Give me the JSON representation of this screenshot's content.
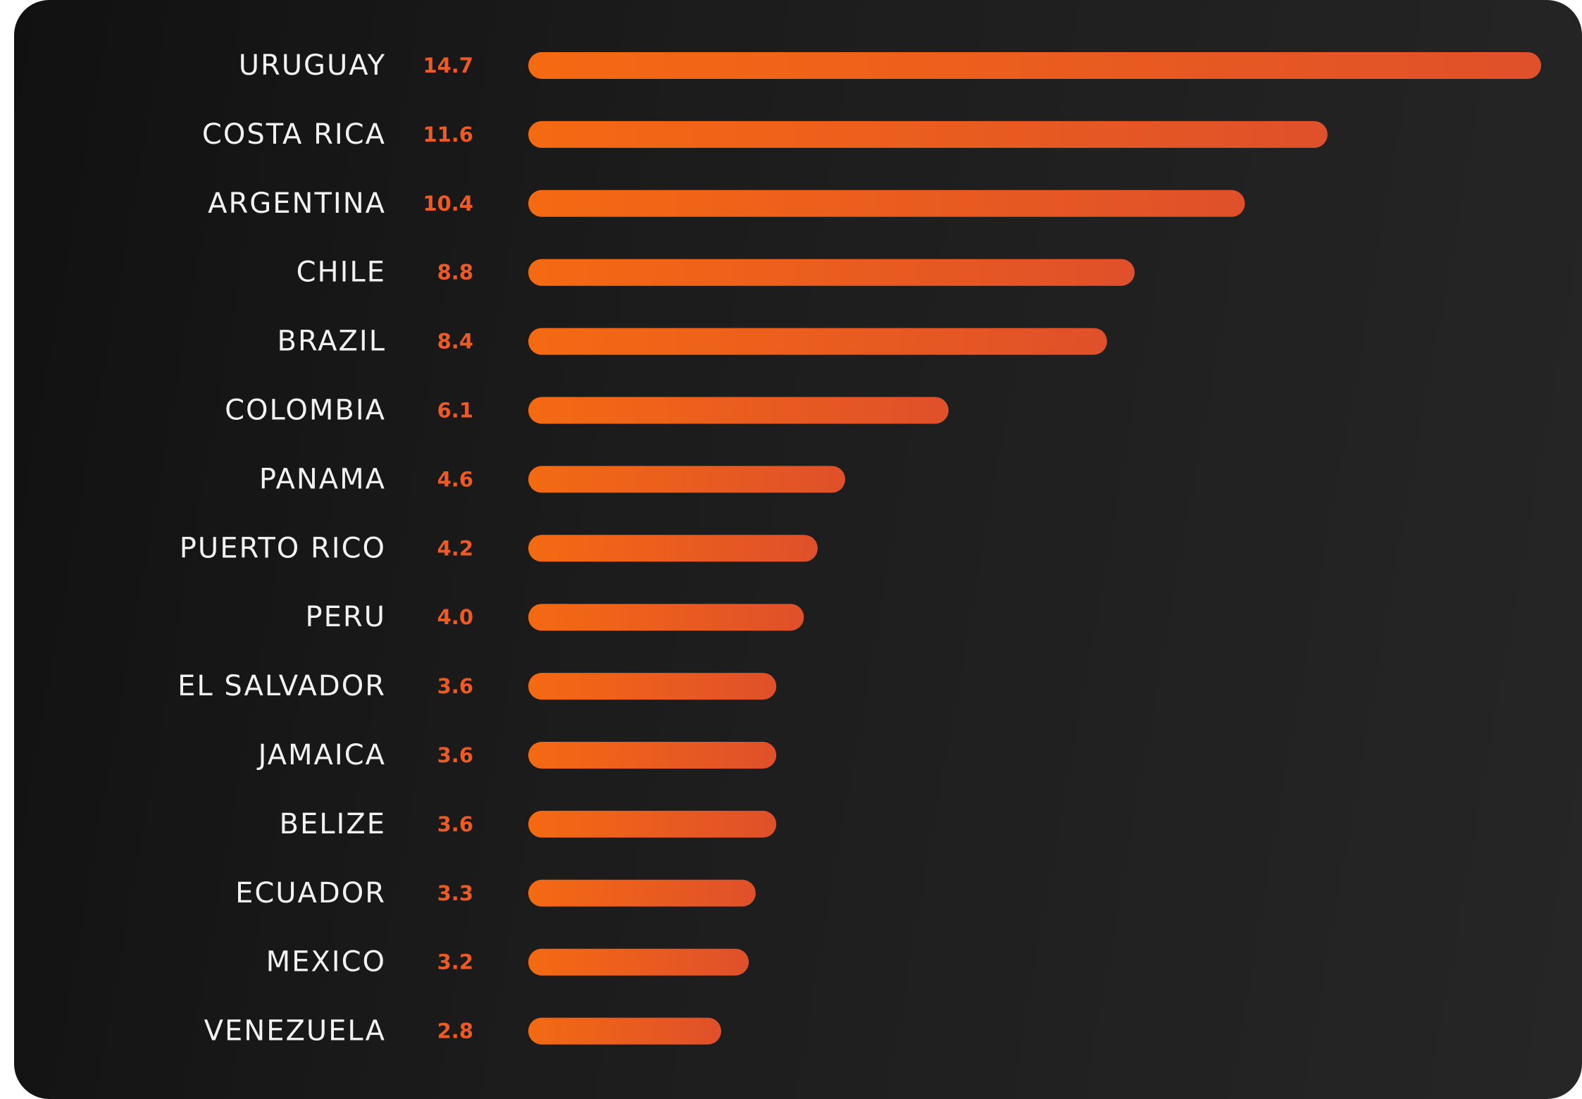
{
  "chart_data": {
    "type": "bar",
    "orientation": "horizontal",
    "categories": [
      "URUGUAY",
      "COSTA RICA",
      "ARGENTINA",
      "CHILE",
      "BRAZIL",
      "COLOMBIA",
      "PANAMA",
      "PUERTO RICO",
      "PERU",
      "EL SALVADOR",
      "JAMAICA",
      "BELIZE",
      "ECUADOR",
      "MEXICO",
      "VENEZUELA"
    ],
    "values": [
      14.7,
      11.6,
      10.4,
      8.8,
      8.4,
      6.1,
      4.6,
      4.2,
      4.0,
      3.6,
      3.6,
      3.6,
      3.3,
      3.2,
      2.8
    ],
    "value_labels": [
      "14.7",
      "11.6",
      "10.4",
      "8.8",
      "8.4",
      "6.1",
      "4.6",
      "4.2",
      "4.0",
      "3.6",
      "3.6",
      "3.6",
      "3.3",
      "3.2",
      "2.8"
    ],
    "xlim": [
      0,
      14.7
    ],
    "grid": false,
    "legend": "none",
    "colors": {
      "background": "#1a1a1a",
      "bar_start": "#f46a12",
      "bar_end": "#e0502a",
      "value_text": "#ee5a22",
      "category_text": "#f2f2f2"
    }
  }
}
